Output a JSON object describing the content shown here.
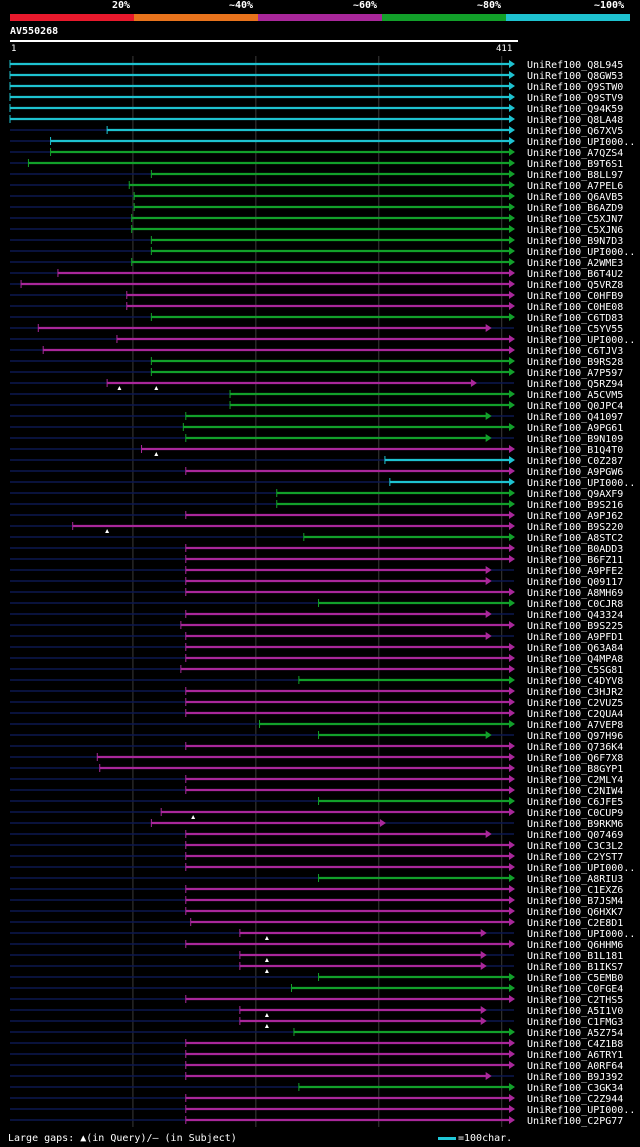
{
  "legend": {
    "labels": [
      "20%",
      "~40%",
      "~60%",
      "~80%",
      "~100%"
    ],
    "colors": [
      "#e8192c",
      "#e8731c",
      "#a9279a",
      "#12a02a",
      "#1ec2d0"
    ]
  },
  "query": {
    "name": "AV550268",
    "start_label": "1",
    "end_label": "411"
  },
  "footer": {
    "gaps_text": "Large gaps: ▲(in Query)/— (in Subject)",
    "scale_text": "=100char."
  },
  "chart_data": {
    "type": "alignment",
    "title": "AV550268",
    "query_length": 411,
    "color_by_identity": {
      "20%": "#e8192c",
      "~40%": "#e8731c",
      "~60%": "#a9279a",
      "~80%": "#12a02a",
      "~100%": "#1ec2d0"
    },
    "hits": [
      {
        "id": "UniRef100_Q8L945",
        "start": 1,
        "end": 411,
        "identity": "~100%"
      },
      {
        "id": "UniRef100_Q8GW53",
        "start": 1,
        "end": 411,
        "identity": "~100%"
      },
      {
        "id": "UniRef100_Q9STW0",
        "start": 1,
        "end": 411,
        "identity": "~100%"
      },
      {
        "id": "UniRef100_Q9STV9",
        "start": 1,
        "end": 411,
        "identity": "~100%"
      },
      {
        "id": "UniRef100_Q94K59",
        "start": 1,
        "end": 411,
        "identity": "~100%"
      },
      {
        "id": "UniRef100_Q8LA48",
        "start": 1,
        "end": 411,
        "identity": "~100%"
      },
      {
        "id": "UniRef100_Q67XV5",
        "start": 80,
        "end": 411,
        "identity": "~100%"
      },
      {
        "id": "UniRef100_UPI000..",
        "start": 34,
        "end": 411,
        "identity": "~100%"
      },
      {
        "id": "UniRef100_A7QZS4",
        "start": 34,
        "end": 411,
        "identity": "~80%"
      },
      {
        "id": "UniRef100_B9T6S1",
        "start": 16,
        "end": 411,
        "identity": "~80%"
      },
      {
        "id": "UniRef100_B8LL97",
        "start": 116,
        "end": 411,
        "identity": "~80%"
      },
      {
        "id": "UniRef100_A7PEL6",
        "start": 98,
        "end": 411,
        "identity": "~80%"
      },
      {
        "id": "UniRef100_Q6AVB5",
        "start": 102,
        "end": 411,
        "identity": "~80%"
      },
      {
        "id": "UniRef100_B6AZD9",
        "start": 102,
        "end": 411,
        "identity": "~80%"
      },
      {
        "id": "UniRef100_C5XJN7",
        "start": 100,
        "end": 411,
        "identity": "~80%"
      },
      {
        "id": "UniRef100_C5XJN6",
        "start": 100,
        "end": 411,
        "identity": "~80%"
      },
      {
        "id": "UniRef100_B9N7D3",
        "start": 116,
        "end": 411,
        "identity": "~80%"
      },
      {
        "id": "UniRef100_UPI000..",
        "start": 116,
        "end": 411,
        "identity": "~80%"
      },
      {
        "id": "UniRef100_A2WME3",
        "start": 100,
        "end": 411,
        "identity": "~80%"
      },
      {
        "id": "UniRef100_B6T4U2",
        "start": 40,
        "end": 411,
        "identity": "~60%"
      },
      {
        "id": "UniRef100_Q5VRZ8",
        "start": 10,
        "end": 411,
        "identity": "~60%"
      },
      {
        "id": "UniRef100_C0HFB9",
        "start": 96,
        "end": 411,
        "identity": "~60%"
      },
      {
        "id": "UniRef100_C0HE08",
        "start": 96,
        "end": 411,
        "identity": "~60%"
      },
      {
        "id": "UniRef100_C6TD83",
        "start": 116,
        "end": 411,
        "identity": "~80%"
      },
      {
        "id": "UniRef100_C5YV55",
        "start": 24,
        "end": 392,
        "identity": "~60%"
      },
      {
        "id": "UniRef100_UPI000..",
        "start": 88,
        "end": 411,
        "identity": "~60%"
      },
      {
        "id": "UniRef100_C6TJV3",
        "start": 28,
        "end": 411,
        "identity": "~60%"
      },
      {
        "id": "UniRef100_B9RS28",
        "start": 116,
        "end": 411,
        "identity": "~80%"
      },
      {
        "id": "UniRef100_A7P597",
        "start": 116,
        "end": 411,
        "identity": "~80%"
      },
      {
        "id": "UniRef100_Q5RZ94",
        "start": 80,
        "end": 380,
        "identity": "~60%",
        "query_gaps": [
          90,
          120
        ]
      },
      {
        "id": "UniRef100_A5CVM5",
        "start": 180,
        "end": 411,
        "identity": "~80%"
      },
      {
        "id": "UniRef100_Q0JPC4",
        "start": 180,
        "end": 411,
        "identity": "~80%"
      },
      {
        "id": "UniRef100_Q41097",
        "start": 144,
        "end": 392,
        "identity": "~80%"
      },
      {
        "id": "UniRef100_A9PG61",
        "start": 142,
        "end": 411,
        "identity": "~80%"
      },
      {
        "id": "UniRef100_B9N109",
        "start": 144,
        "end": 392,
        "identity": "~80%"
      },
      {
        "id": "UniRef100_B1Q4T0",
        "start": 108,
        "end": 411,
        "identity": "~60%",
        "query_gaps": [
          120
        ]
      },
      {
        "id": "UniRef100_C0Z287",
        "start": 306,
        "end": 411,
        "identity": "~100%"
      },
      {
        "id": "UniRef100_A9PGW6",
        "start": 144,
        "end": 411,
        "identity": "~60%"
      },
      {
        "id": "UniRef100_UPI000..",
        "start": 310,
        "end": 411,
        "identity": "~100%"
      },
      {
        "id": "UniRef100_Q9AXF9",
        "start": 218,
        "end": 411,
        "identity": "~80%"
      },
      {
        "id": "UniRef100_B9S216",
        "start": 218,
        "end": 411,
        "identity": "~80%"
      },
      {
        "id": "UniRef100_A9PJ62",
        "start": 144,
        "end": 411,
        "identity": "~60%"
      },
      {
        "id": "UniRef100_B9S220",
        "start": 52,
        "end": 411,
        "identity": "~60%",
        "query_gaps": [
          80
        ]
      },
      {
        "id": "UniRef100_A8STC2",
        "start": 240,
        "end": 411,
        "identity": "~80%"
      },
      {
        "id": "UniRef100_B0ADD3",
        "start": 144,
        "end": 411,
        "identity": "~60%"
      },
      {
        "id": "UniRef100_B6FZ11",
        "start": 144,
        "end": 411,
        "identity": "~60%"
      },
      {
        "id": "UniRef100_A9PFE2",
        "start": 144,
        "end": 392,
        "identity": "~60%"
      },
      {
        "id": "UniRef100_Q09117",
        "start": 144,
        "end": 392,
        "identity": "~60%"
      },
      {
        "id": "UniRef100_A8MH69",
        "start": 144,
        "end": 411,
        "identity": "~60%"
      },
      {
        "id": "UniRef100_C0CJR8",
        "start": 252,
        "end": 411,
        "identity": "~80%"
      },
      {
        "id": "UniRef100_Q43324",
        "start": 144,
        "end": 392,
        "identity": "~60%"
      },
      {
        "id": "UniRef100_B9S225",
        "start": 140,
        "end": 411,
        "identity": "~60%"
      },
      {
        "id": "UniRef100_A9PFD1",
        "start": 144,
        "end": 392,
        "identity": "~60%"
      },
      {
        "id": "UniRef100_Q63A84",
        "start": 144,
        "end": 411,
        "identity": "~60%"
      },
      {
        "id": "UniRef100_Q4MPA8",
        "start": 144,
        "end": 411,
        "identity": "~60%"
      },
      {
        "id": "UniRef100_C5SG81",
        "start": 140,
        "end": 411,
        "identity": "~60%"
      },
      {
        "id": "UniRef100_C4DYV8",
        "start": 236,
        "end": 411,
        "identity": "~80%"
      },
      {
        "id": "UniRef100_C3HJR2",
        "start": 144,
        "end": 411,
        "identity": "~60%"
      },
      {
        "id": "UniRef100_C2VUZ5",
        "start": 144,
        "end": 411,
        "identity": "~60%"
      },
      {
        "id": "UniRef100_C2QUA4",
        "start": 144,
        "end": 411,
        "identity": "~60%"
      },
      {
        "id": "UniRef100_A7VEP8",
        "start": 204,
        "end": 411,
        "identity": "~80%"
      },
      {
        "id": "UniRef100_Q97H96",
        "start": 252,
        "end": 392,
        "identity": "~80%"
      },
      {
        "id": "UniRef100_Q736K4",
        "start": 144,
        "end": 411,
        "identity": "~60%"
      },
      {
        "id": "UniRef100_Q6F7X8",
        "start": 72,
        "end": 411,
        "identity": "~60%"
      },
      {
        "id": "UniRef100_B8GYP1",
        "start": 74,
        "end": 411,
        "identity": "~60%"
      },
      {
        "id": "UniRef100_C2MLY4",
        "start": 144,
        "end": 411,
        "identity": "~60%"
      },
      {
        "id": "UniRef100_C2NIW4",
        "start": 144,
        "end": 411,
        "identity": "~60%"
      },
      {
        "id": "UniRef100_C6JFE5",
        "start": 252,
        "end": 411,
        "identity": "~80%"
      },
      {
        "id": "UniRef100_C0CUP9",
        "start": 124,
        "end": 411,
        "identity": "~60%",
        "query_gaps": [
          150
        ]
      },
      {
        "id": "UniRef100_B9RKM6",
        "start": 116,
        "end": 306,
        "identity": "~60%"
      },
      {
        "id": "UniRef100_Q07469",
        "start": 144,
        "end": 392,
        "identity": "~60%"
      },
      {
        "id": "UniRef100_C3C3L2",
        "start": 144,
        "end": 411,
        "identity": "~60%"
      },
      {
        "id": "UniRef100_C2YST7",
        "start": 144,
        "end": 411,
        "identity": "~60%"
      },
      {
        "id": "UniRef100_UPI000..",
        "start": 144,
        "end": 411,
        "identity": "~60%"
      },
      {
        "id": "UniRef100_A8RIU3",
        "start": 252,
        "end": 411,
        "identity": "~80%"
      },
      {
        "id": "UniRef100_C1EXZ6",
        "start": 144,
        "end": 411,
        "identity": "~60%"
      },
      {
        "id": "UniRef100_B7JSM4",
        "start": 144,
        "end": 411,
        "identity": "~60%"
      },
      {
        "id": "UniRef100_Q6HXK7",
        "start": 144,
        "end": 411,
        "identity": "~60%"
      },
      {
        "id": "UniRef100_C2E8D1",
        "start": 148,
        "end": 411,
        "identity": "~60%"
      },
      {
        "id": "UniRef100_UPI000..",
        "start": 188,
        "end": 388,
        "identity": "~60%",
        "query_gaps": [
          210
        ]
      },
      {
        "id": "UniRef100_Q6HHM6",
        "start": 144,
        "end": 411,
        "identity": "~60%"
      },
      {
        "id": "UniRef100_B1L181",
        "start": 188,
        "end": 388,
        "identity": "~60%",
        "query_gaps": [
          210
        ]
      },
      {
        "id": "UniRef100_B1IKS7",
        "start": 188,
        "end": 388,
        "identity": "~60%",
        "query_gaps": [
          210
        ]
      },
      {
        "id": "UniRef100_C5EMB0",
        "start": 252,
        "end": 411,
        "identity": "~80%"
      },
      {
        "id": "UniRef100_C0FGE4",
        "start": 230,
        "end": 411,
        "identity": "~80%"
      },
      {
        "id": "UniRef100_C2THS5",
        "start": 144,
        "end": 411,
        "identity": "~60%"
      },
      {
        "id": "UniRef100_A5I1V0",
        "start": 188,
        "end": 388,
        "identity": "~60%",
        "query_gaps": [
          210
        ]
      },
      {
        "id": "UniRef100_C1FMG3",
        "start": 188,
        "end": 388,
        "identity": "~60%",
        "query_gaps": [
          210
        ]
      },
      {
        "id": "UniRef100_A5Z754",
        "start": 232,
        "end": 411,
        "identity": "~80%"
      },
      {
        "id": "UniRef100_C4Z1B8",
        "start": 144,
        "end": 411,
        "identity": "~60%"
      },
      {
        "id": "UniRef100_A6TRY1",
        "start": 144,
        "end": 411,
        "identity": "~60%"
      },
      {
        "id": "UniRef100_A0RF64",
        "start": 144,
        "end": 411,
        "identity": "~60%"
      },
      {
        "id": "UniRef100_B9J392",
        "start": 144,
        "end": 392,
        "identity": "~60%"
      },
      {
        "id": "UniRef100_C3GK34",
        "start": 236,
        "end": 411,
        "identity": "~80%"
      },
      {
        "id": "UniRef100_C2Z944",
        "start": 144,
        "end": 411,
        "identity": "~60%"
      },
      {
        "id": "UniRef100_UPI000..",
        "start": 144,
        "end": 411,
        "identity": "~60%"
      },
      {
        "id": "UniRef100_C2PG77",
        "start": 144,
        "end": 411,
        "identity": "~60%"
      }
    ]
  }
}
